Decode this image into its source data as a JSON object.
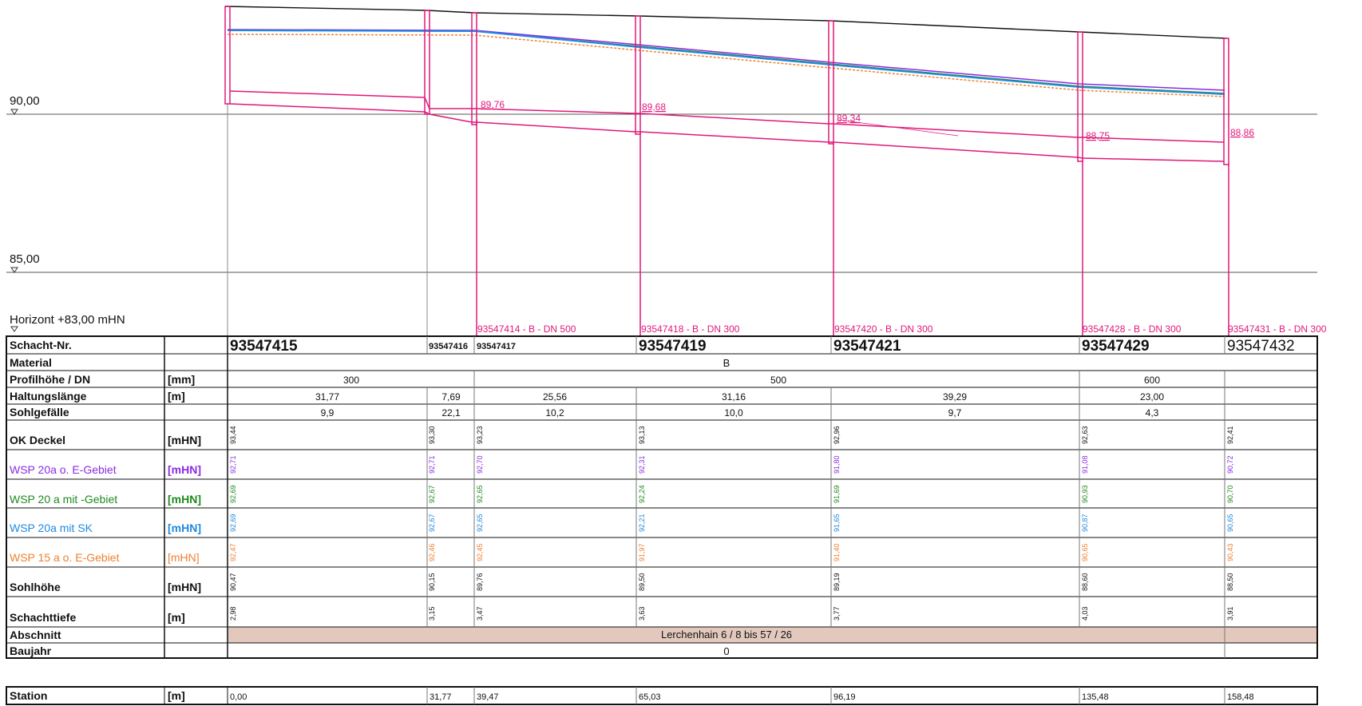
{
  "elevation_axis": {
    "labels": [
      "90,00",
      "85,00"
    ],
    "horizon_label": "Horizont +83,00 mHN"
  },
  "profile": {
    "invert_labels": [
      "89,76",
      "89,68",
      "89,34",
      "88,75",
      "88,86"
    ],
    "pipe_labels": [
      "93547414 - B - DN 500",
      "93547418 - B - DN 300",
      "93547420 - B - DN 300",
      "93547428 - B - DN 300",
      "93547431 - B - DN 300"
    ]
  },
  "table": {
    "row_labels": {
      "schacht": "Schacht-Nr.",
      "material": "Material",
      "profil": "Profilhöhe / DN",
      "haltung": "Haltungslänge",
      "gefaelle": "Sohlgefälle",
      "deckel": "OK Deckel",
      "wsp20a": "WSP 20a o. E-Gebiet",
      "wsp20mit": "WSP 20 a mit -Gebiet",
      "wsp20sk": "WSP 20a mit SK",
      "wsp15": "WSP 15 a o. E-Gebiet",
      "sohl": "Sohlhöhe",
      "tiefe": "Schachttiefe",
      "abschnitt": "Abschnitt",
      "baujahr": "Baujahr"
    },
    "units": {
      "profil": "[mm]",
      "haltung": "[m]",
      "deckel": "[mHN]",
      "wsp20a": "[mHN]",
      "wsp20mit": "[mHN]",
      "wsp20sk": "[mHN]",
      "wsp15": "[mHN]",
      "sohl": "[mHN]",
      "tiefe": "[m]"
    },
    "schacht_nr": [
      "93547415",
      "93547416",
      "93547417",
      "93547419",
      "93547421",
      "93547429",
      "93547432"
    ],
    "material": "B",
    "profilhoehe": [
      "300",
      "500",
      "600"
    ],
    "haltungslaenge": [
      "31,77",
      "7,69",
      "25,56",
      "31,16",
      "39,29",
      "23,00"
    ],
    "sohlgefaelle": [
      "9,9",
      "22,1",
      "10,2",
      "10,0",
      "9,7",
      "4,3"
    ],
    "ok_deckel": [
      "93,44",
      "93,30",
      "93,23",
      "93,13",
      "92,96",
      "92,63",
      "92,41"
    ],
    "wsp_20a_oe": [
      "92,71",
      "92,71",
      "92,70",
      "92,31",
      "91,80",
      "91,08",
      "90,72"
    ],
    "wsp_20a_mit": [
      "92,69",
      "92,67",
      "92,65",
      "92,24",
      "91,69",
      "90,93",
      "90,70"
    ],
    "wsp_20a_sk": [
      "92,69",
      "92,67",
      "92,65",
      "92,21",
      "91,65",
      "90,87",
      "90,65"
    ],
    "wsp_15a_oe": [
      "92,47",
      "92,46",
      "92,45",
      "91,97",
      "91,40",
      "90,65",
      "90,43"
    ],
    "sohlhoehe": [
      "90,47",
      "90,15",
      "89,76",
      "89,50",
      "89,19",
      "88,60",
      "88,50"
    ],
    "schachttiefe": [
      "2,98",
      "3,15",
      "3,47",
      "3,63",
      "3,77",
      "4,03",
      "3,91"
    ],
    "abschnitt": "Lerchenhain 6 / 8  bis 57 / 26",
    "baujahr": "0"
  },
  "station": {
    "label": "Station",
    "unit": "[m]",
    "values": [
      "0,00",
      "31,77",
      "39,47",
      "65,03",
      "96,19",
      "135,48",
      "158,48"
    ]
  },
  "colors": {
    "pink": "#e0187a",
    "purple": "#8a2be2",
    "green": "#1e8a1e",
    "blue": "#1f8ae0",
    "orange": "#f08030",
    "abschnitt_bg": "#e3c9bd"
  }
}
